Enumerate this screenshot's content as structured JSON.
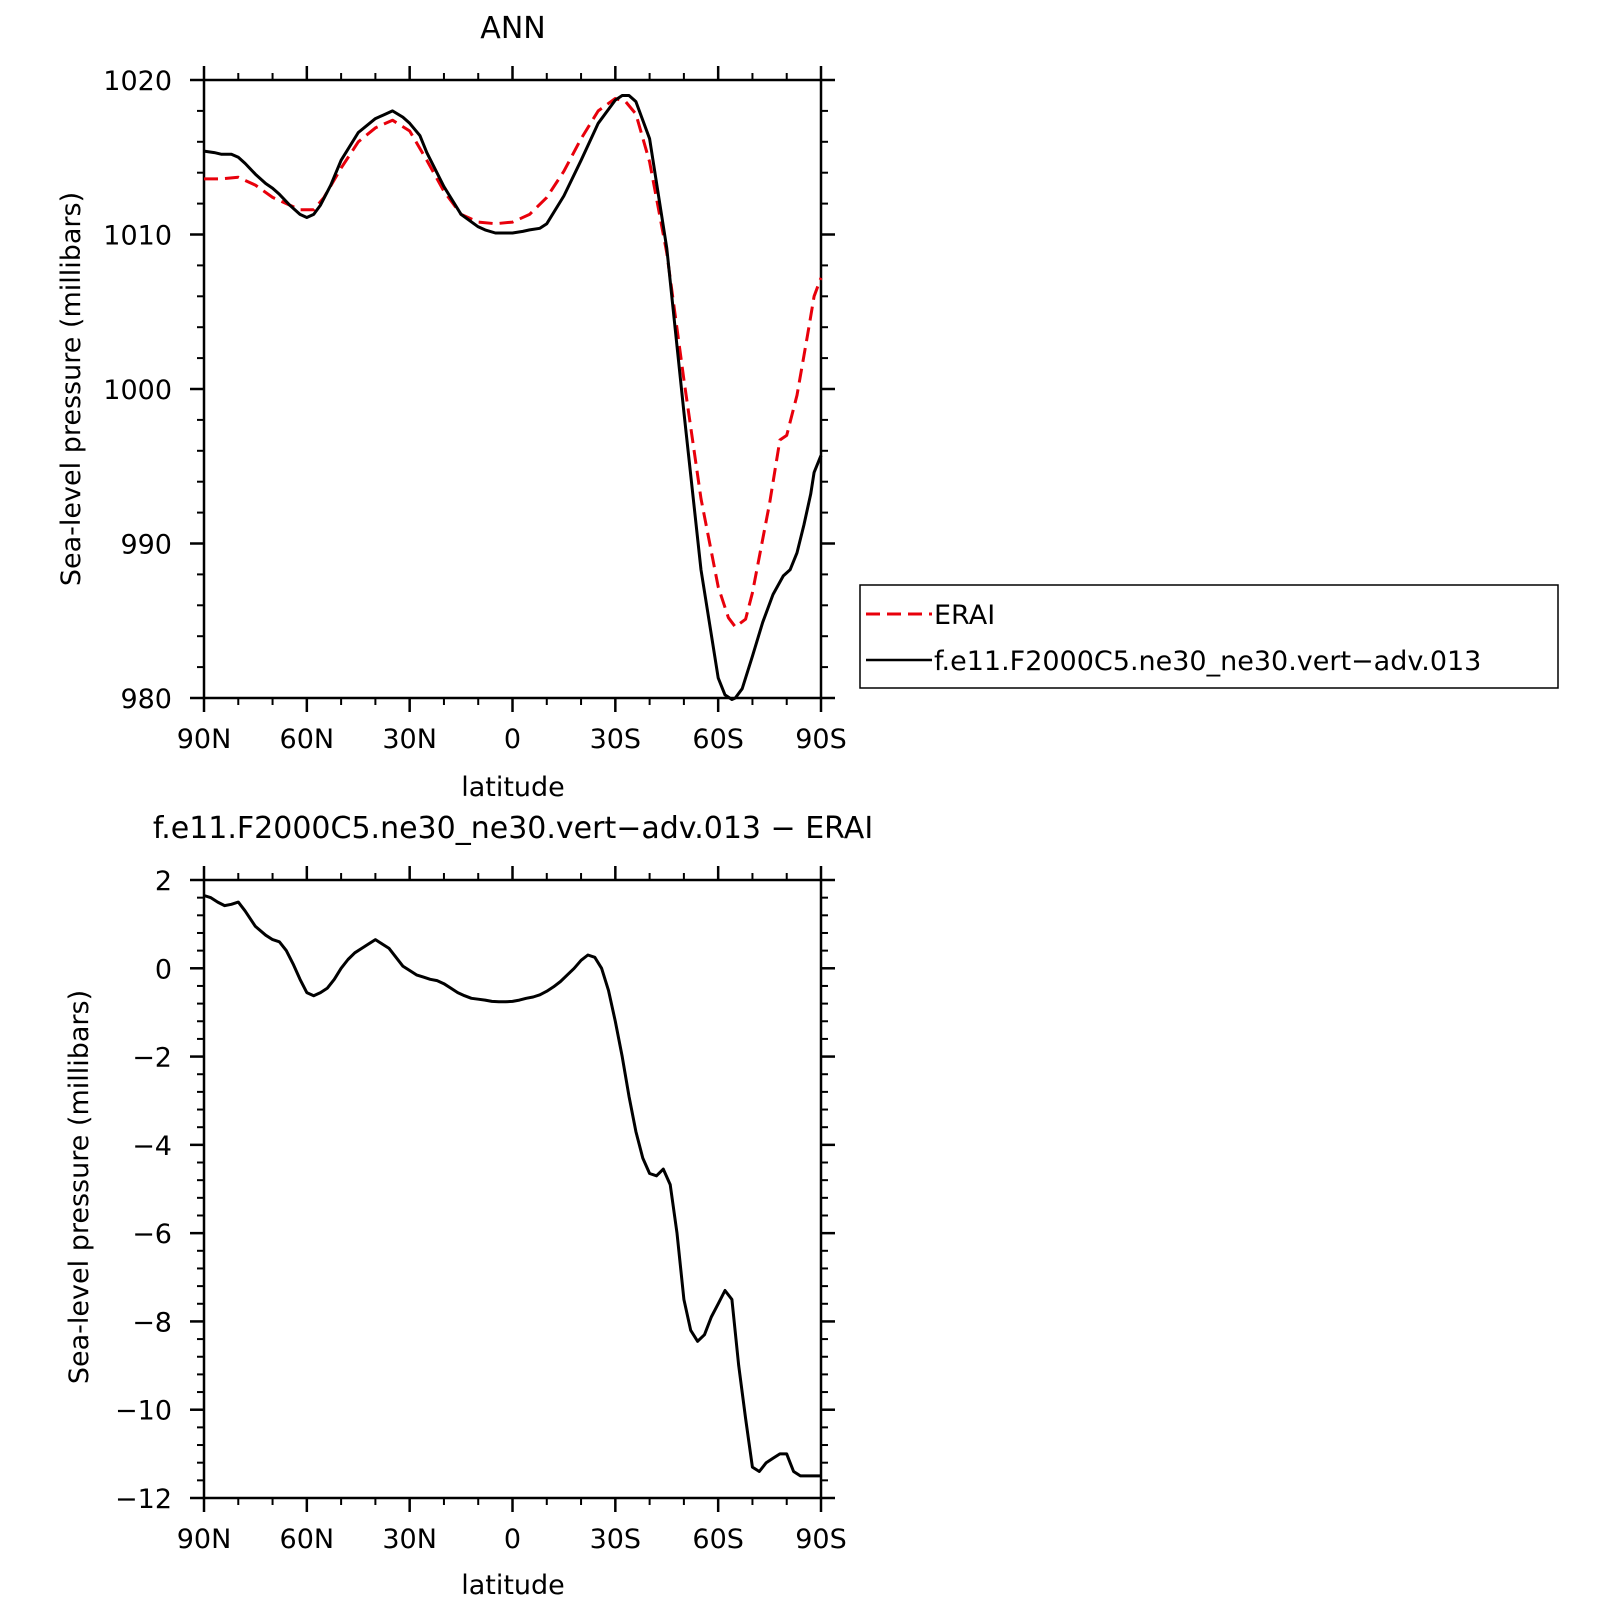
{
  "chart_data": [
    {
      "type": "line",
      "title": "ANN",
      "xlabel": "latitude",
      "ylabel": "Sea-level pressure (millibars)",
      "xlim": [
        90,
        -90
      ],
      "ylim": [
        980,
        1020
      ],
      "xticks": [
        90,
        60,
        30,
        0,
        -30,
        -60,
        -90
      ],
      "xtick_labels": [
        "90N",
        "60N",
        "30N",
        "0",
        "30S",
        "60S",
        "90S"
      ],
      "yticks": [
        980,
        990,
        1000,
        1010,
        1020
      ],
      "ytick_labels": [
        "980",
        "990",
        "1000",
        "1010",
        "1020"
      ],
      "legend_position": "right",
      "series": [
        {
          "name": "ERAI",
          "color": "#e8000b",
          "dash": "dashed",
          "x": [
            90,
            85,
            80,
            75,
            70,
            65,
            62,
            58,
            55,
            50,
            45,
            40,
            35,
            30,
            25,
            20,
            15,
            10,
            5,
            0,
            -5,
            -10,
            -15,
            -20,
            -25,
            -30,
            -33,
            -36,
            -40,
            -45,
            -50,
            -55,
            -60,
            -63,
            -65,
            -68,
            -70,
            -75,
            -78,
            -80,
            -83,
            -86,
            -88,
            -90
          ],
          "y": [
            1013.6,
            1013.6,
            1013.7,
            1013.2,
            1012.4,
            1011.9,
            1011.6,
            1011.6,
            1012.4,
            1014.3,
            1016.0,
            1016.9,
            1017.4,
            1016.7,
            1014.8,
            1012.8,
            1011.3,
            1010.8,
            1010.7,
            1010.8,
            1011.3,
            1012.4,
            1014.1,
            1016.2,
            1018.0,
            1018.8,
            1018.6,
            1017.8,
            1014.7,
            1008.8,
            1000.6,
            992.9,
            987.2,
            985.2,
            984.6,
            985.1,
            986.8,
            992.6,
            996.7,
            997.0,
            999.6,
            1003.4,
            1006.0,
            1007.2
          ]
        },
        {
          "name": "f.e11.F2000C5.ne30_ne30.vert−adv.013",
          "color": "#000000",
          "dash": "solid",
          "x": [
            90,
            87,
            85,
            82,
            80,
            78,
            75,
            72,
            70,
            68,
            65,
            62,
            60,
            58,
            56,
            53,
            50,
            45,
            40,
            37,
            35,
            32,
            30,
            27,
            25,
            20,
            15,
            10,
            8,
            5,
            2,
            0,
            -3,
            -5,
            -8,
            -10,
            -15,
            -20,
            -25,
            -30,
            -32,
            -34,
            -36,
            -40,
            -45,
            -50,
            -55,
            -60,
            -62,
            -64,
            -65,
            -67,
            -70,
            -73,
            -76,
            -79,
            -81,
            -83,
            -85,
            -87,
            -88,
            -90
          ],
          "y": [
            1015.4,
            1015.3,
            1015.2,
            1015.2,
            1015.0,
            1014.6,
            1013.9,
            1013.3,
            1013.0,
            1012.6,
            1011.9,
            1011.3,
            1011.1,
            1011.3,
            1011.9,
            1013.2,
            1014.8,
            1016.6,
            1017.5,
            1017.8,
            1018.0,
            1017.6,
            1017.2,
            1016.4,
            1015.3,
            1013.1,
            1011.3,
            1010.5,
            1010.3,
            1010.1,
            1010.1,
            1010.1,
            1010.2,
            1010.3,
            1010.4,
            1010.7,
            1012.5,
            1014.8,
            1017.2,
            1018.7,
            1019.0,
            1019.0,
            1018.6,
            1016.2,
            1009.1,
            998.5,
            988.3,
            981.3,
            980.2,
            979.9,
            980.0,
            980.6,
            982.7,
            984.9,
            986.7,
            987.9,
            988.3,
            989.4,
            991.2,
            993.2,
            994.6,
            995.7
          ]
        }
      ]
    },
    {
      "type": "line",
      "title": "f.e11.F2000C5.ne30_ne30.vert−adv.013 − ERAI",
      "xlabel": "latitude",
      "ylabel": "Sea-level pressure (millibars)",
      "xlim": [
        90,
        -90
      ],
      "ylim": [
        -12,
        2
      ],
      "xticks": [
        90,
        60,
        30,
        0,
        -30,
        -60,
        -90
      ],
      "xtick_labels": [
        "90N",
        "60N",
        "30N",
        "0",
        "30S",
        "60S",
        "90S"
      ],
      "yticks": [
        -12,
        -10,
        -8,
        -6,
        -4,
        -2,
        0,
        2
      ],
      "ytick_labels": [
        "−12",
        "−10",
        "−8",
        "−6",
        "−4",
        "−2",
        "0",
        "2"
      ],
      "series": [
        {
          "color": "#000000",
          "dash": "solid",
          "x": [
            90,
            88,
            86,
            84,
            82,
            80,
            78,
            75,
            72,
            70,
            68,
            66,
            64,
            62,
            60,
            58,
            56,
            54,
            52,
            50,
            48,
            46,
            44,
            42,
            40,
            38,
            36,
            34,
            32,
            30,
            28,
            26,
            24,
            22,
            20,
            18,
            16,
            14,
            12,
            10,
            8,
            6,
            4,
            2,
            0,
            -2,
            -4,
            -6,
            -8,
            -10,
            -12,
            -14,
            -16,
            -18,
            -20,
            -22,
            -24,
            -26,
            -28,
            -30,
            -32,
            -34,
            -36,
            -38,
            -40,
            -42,
            -44,
            -46,
            -48,
            -50,
            -52,
            -54,
            -56,
            -58,
            -60,
            -62,
            -64,
            -66,
            -68,
            -70,
            -72,
            -74,
            -76,
            -78,
            -80,
            -81,
            -82,
            -84,
            -85,
            -86,
            -87,
            -88,
            -89,
            -90
          ],
          "y": [
            1.65,
            1.6,
            1.5,
            1.42,
            1.45,
            1.5,
            1.3,
            0.95,
            0.75,
            0.65,
            0.6,
            0.4,
            0.1,
            -0.25,
            -0.55,
            -0.62,
            -0.55,
            -0.45,
            -0.25,
            0.0,
            0.2,
            0.35,
            0.45,
            0.55,
            0.65,
            0.55,
            0.45,
            0.25,
            0.05,
            -0.05,
            -0.15,
            -0.2,
            -0.25,
            -0.28,
            -0.35,
            -0.45,
            -0.55,
            -0.62,
            -0.68,
            -0.7,
            -0.72,
            -0.75,
            -0.76,
            -0.76,
            -0.75,
            -0.72,
            -0.68,
            -0.65,
            -0.6,
            -0.52,
            -0.42,
            -0.3,
            -0.15,
            0.0,
            0.18,
            0.3,
            0.25,
            0.0,
            -0.5,
            -1.2,
            -2.0,
            -2.9,
            -3.7,
            -4.3,
            -4.65,
            -4.7,
            -4.55,
            -4.9,
            -6.0,
            -7.5,
            -8.2,
            -8.45,
            -8.3,
            -7.9,
            -7.6,
            -7.3,
            -7.5,
            -9.0,
            -10.2,
            -11.3,
            -11.4,
            -11.2,
            -11.1,
            -11.0,
            -11.0,
            -11.2,
            -11.4,
            -11.5,
            -11.5,
            -11.5,
            -11.5,
            -11.5,
            -11.5,
            -11.5
          ]
        }
      ]
    }
  ]
}
